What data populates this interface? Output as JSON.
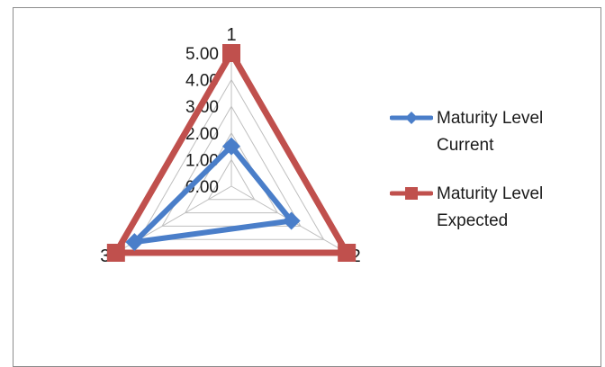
{
  "chart_data": {
    "type": "radar",
    "title": "",
    "categories": [
      "1",
      "2",
      "3"
    ],
    "rlim": [
      0,
      5
    ],
    "ticks": [
      "0.00",
      "1.00",
      "2.00",
      "3.00",
      "4.00",
      "5.00"
    ],
    "grid": true,
    "legend_position": "right",
    "series": [
      {
        "name": "Maturity Level Current",
        "values": [
          1.5,
          2.6,
          4.2
        ],
        "color": "#4a7ec9",
        "marker": "diamond"
      },
      {
        "name": "Maturity Level Expected",
        "values": [
          5,
          5,
          5
        ],
        "color": "#c0504d",
        "marker": "square"
      }
    ]
  }
}
